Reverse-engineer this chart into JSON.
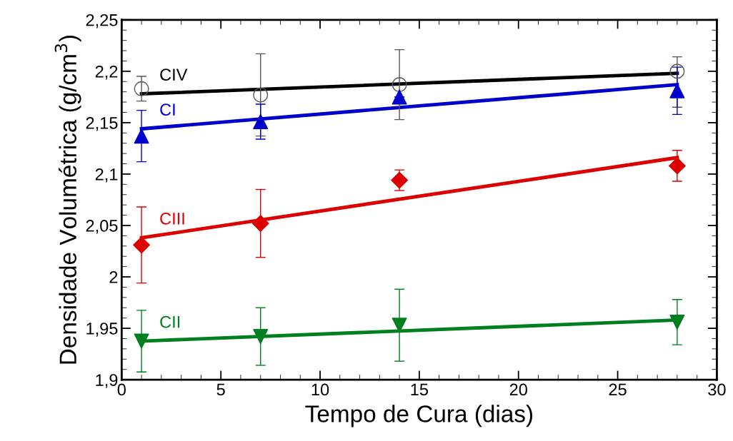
{
  "chart_data": {
    "type": "scatter",
    "xlabel": "Tempo de Cura (dias)",
    "ylabel": "Densidade Volumétrica (g/cm$^{3}$)",
    "xlim": [
      0,
      30
    ],
    "xticks": [
      0,
      5,
      10,
      15,
      20,
      25,
      30
    ],
    "ylim": [
      1.9,
      2.25
    ],
    "yticks": [
      {
        "value": 1.9,
        "label": "1,9"
      },
      {
        "value": 1.95,
        "label": "1,95"
      },
      {
        "value": 2,
        "label": "2"
      },
      {
        "value": 2.05,
        "label": "2,05"
      },
      {
        "value": 2.1,
        "label": "2,1"
      },
      {
        "value": 2.15,
        "label": "2,15"
      },
      {
        "value": 2.2,
        "label": "2,2"
      },
      {
        "value": 2.25,
        "label": "2,25"
      }
    ],
    "grid": false,
    "legend": false,
    "series": [
      {
        "type": "line",
        "name": "CIV",
        "color": "#000000",
        "x": [
          1,
          28
        ],
        "values": [
          2.178,
          2.198
        ],
        "marker": "none",
        "line_style": "solid"
      },
      {
        "type": "line",
        "name": "CI",
        "color": "#0000cc",
        "x": [
          1,
          28
        ],
        "values": [
          2.144,
          2.187
        ],
        "marker": "none",
        "line_style": "solid"
      },
      {
        "type": "line",
        "name": "CIII",
        "color": "#dd0000",
        "x": [
          1,
          28
        ],
        "values": [
          2.038,
          2.116
        ],
        "marker": "none",
        "line_style": "solid"
      },
      {
        "type": "line",
        "name": "CII",
        "color": "#007f1f",
        "x": [
          1,
          28
        ],
        "values": [
          1.9375,
          1.958
        ],
        "marker": "none",
        "line_style": "solid"
      },
      {
        "color": "#555555",
        "x": [
          1,
          7,
          14,
          28
        ],
        "values": [
          2.183,
          2.177,
          2.187,
          2.2
        ],
        "errors": [
          0.012,
          0.04,
          0.034,
          [
            2.165,
            2.214
          ]
        ],
        "marker": "circle"
      },
      {
        "color": "#0000cc",
        "x": [
          1,
          7,
          14,
          28
        ],
        "values": [
          2.137,
          2.151,
          2.175,
          2.181
        ],
        "errors": [
          0.025,
          0.017,
          null,
          0.023
        ],
        "marker": "triangle"
      },
      {
        "color": "#dd0000",
        "x": [
          1,
          7,
          14,
          28
        ],
        "values": [
          2.031,
          2.052,
          2.094,
          2.108
        ],
        "errors": [
          0.037,
          0.033,
          0.01,
          0.015
        ],
        "marker": "diamond"
      },
      {
        "color": "#007f1f",
        "x": [
          1,
          7,
          14,
          28
        ],
        "values": [
          1.9375,
          1.942,
          1.953,
          1.956
        ],
        "errors": [
          0.03,
          0.028,
          0.035,
          0.022
        ],
        "marker": "triangle_down"
      }
    ]
  }
}
